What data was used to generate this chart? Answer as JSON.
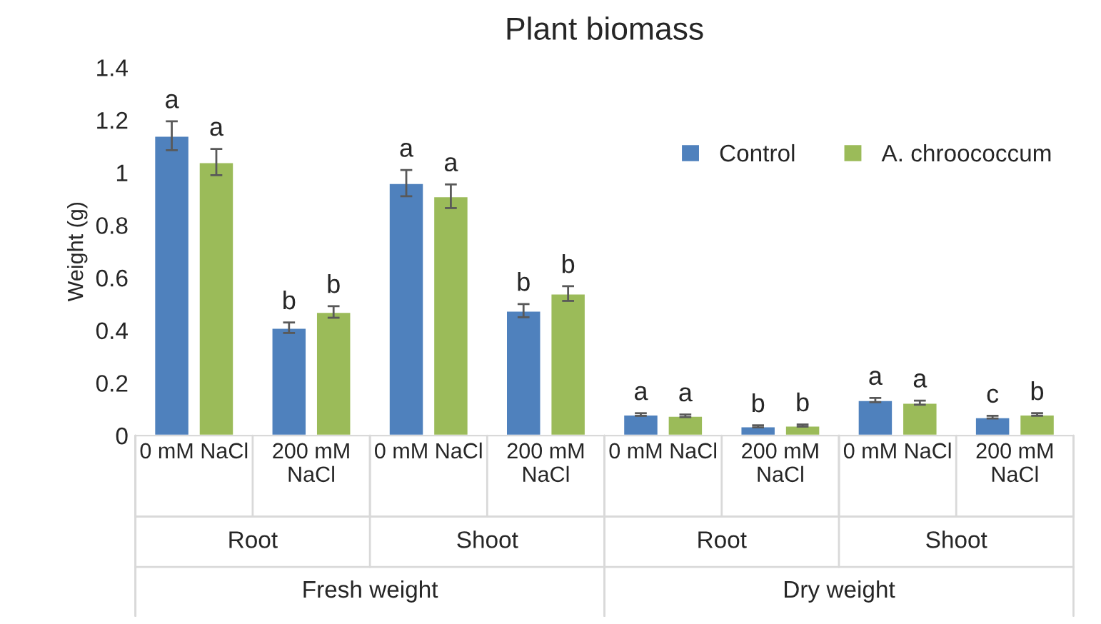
{
  "chart_data": {
    "type": "bar",
    "title": "Plant biomass",
    "ylabel": "Weight (g)",
    "categories": [
      "0 mM NaCl",
      "200 mM\nNaCl",
      "0 mM NaCl",
      "200 mM\nNaCl",
      "0 mM NaCl",
      "200 mM\nNaCl",
      "0 mM NaCl",
      "200 mM\nNaCl"
    ],
    "series": [
      {
        "name": "Control",
        "color": "#4f81bd",
        "values": [
          1.14,
          0.41,
          0.96,
          0.475,
          0.08,
          0.035,
          0.135,
          0.07
        ],
        "errors": [
          0.055,
          0.02,
          0.05,
          0.025,
          0.005,
          0.004,
          0.008,
          0.005
        ],
        "value_labels": [
          "a",
          "b",
          "a",
          "b",
          "a",
          "b",
          "a",
          "c"
        ]
      },
      {
        "name": "A. chroococcum",
        "color": "#9bbb59",
        "values": [
          1.04,
          0.47,
          0.91,
          0.54,
          0.075,
          0.038,
          0.125,
          0.08
        ],
        "errors": [
          0.05,
          0.022,
          0.045,
          0.028,
          0.005,
          0.004,
          0.008,
          0.005
        ],
        "value_labels": [
          "a",
          "b",
          "a",
          "b",
          "a",
          "b",
          "a",
          "b"
        ]
      }
    ],
    "ylim": [
      0,
      1.4
    ],
    "yticks": [
      0,
      0.2,
      0.4,
      0.6,
      0.8,
      1,
      1.2,
      1.4
    ],
    "annotations": [
      "Root",
      "Shoot",
      "Root",
      "Shoot",
      "Fresh weight",
      "Dry weight"
    ],
    "legend": "top right",
    "grid": false
  }
}
